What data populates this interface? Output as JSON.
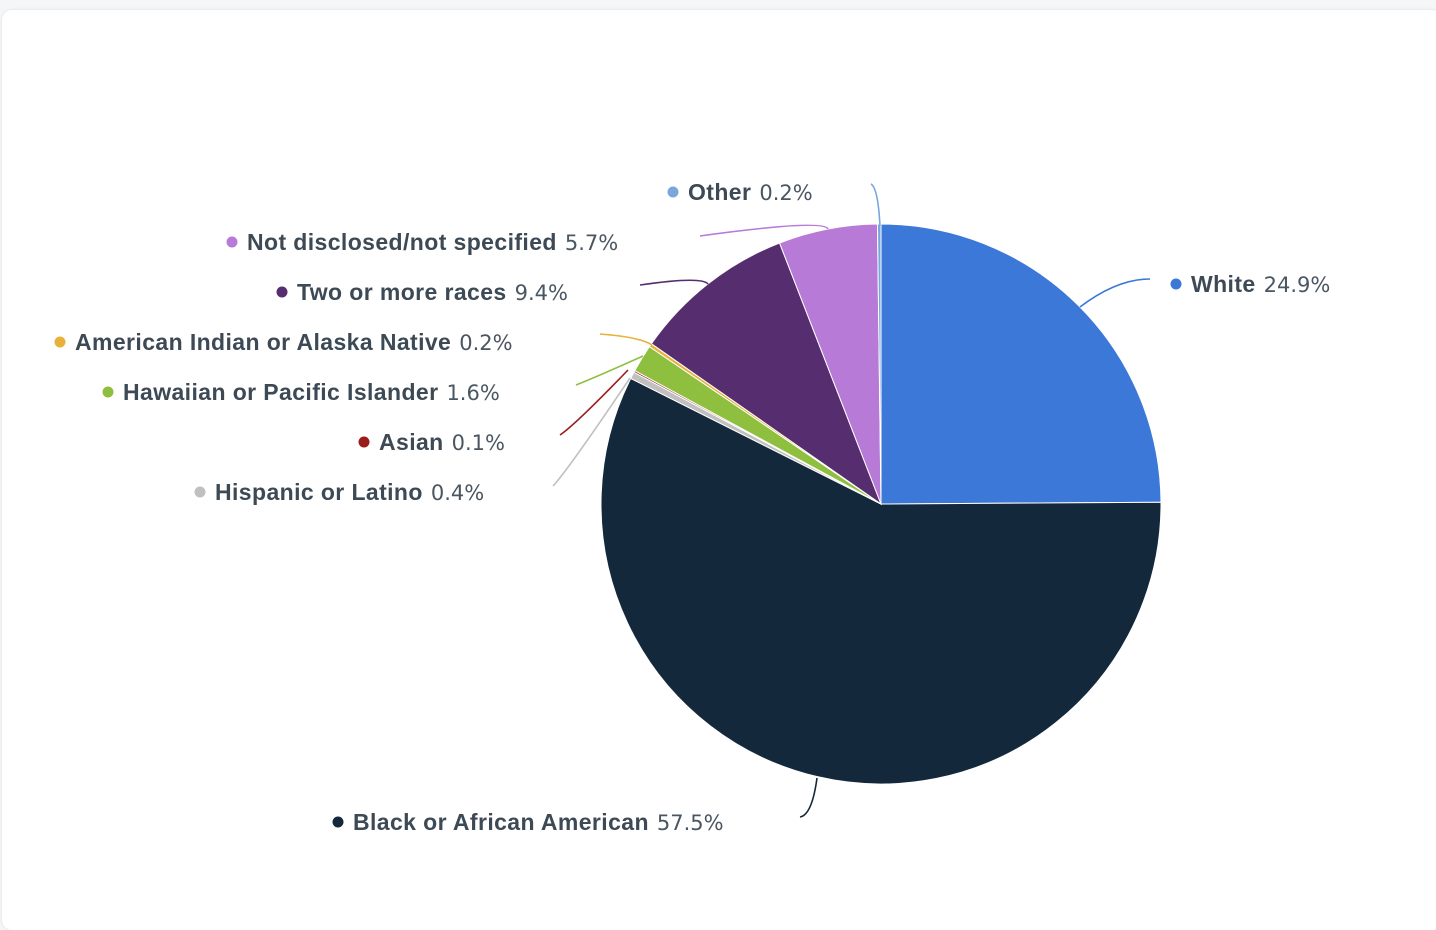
{
  "chart_data": {
    "type": "pie",
    "start_angle_deg": 0,
    "direction": "clockwise",
    "slices": [
      {
        "name": "White",
        "value": 24.9,
        "label": "24.9%",
        "color": "#3c78d8"
      },
      {
        "name": "Black or African American",
        "value": 57.5,
        "label": "57.5%",
        "color": "#14283c"
      },
      {
        "name": "Hispanic or Latino",
        "value": 0.4,
        "label": "0.4%",
        "color": "#c0c0c0"
      },
      {
        "name": "Asian",
        "value": 0.1,
        "label": "0.1%",
        "color": "#9c1c1c"
      },
      {
        "name": "Hawaiian or Pacific Islander",
        "value": 1.6,
        "label": "1.6%",
        "color": "#8fbf3f"
      },
      {
        "name": "American Indian or Alaska Native",
        "value": 0.2,
        "label": "0.2%",
        "color": "#e8b23a"
      },
      {
        "name": "Two or more races",
        "value": 9.4,
        "label": "9.4%",
        "color": "#562d6e"
      },
      {
        "name": "Not disclosed/not specified",
        "value": 5.7,
        "label": "5.7%",
        "color": "#b77ad6"
      },
      {
        "name": "Other",
        "value": 0.2,
        "label": "0.2%",
        "color": "#7aa6dc"
      }
    ]
  }
}
